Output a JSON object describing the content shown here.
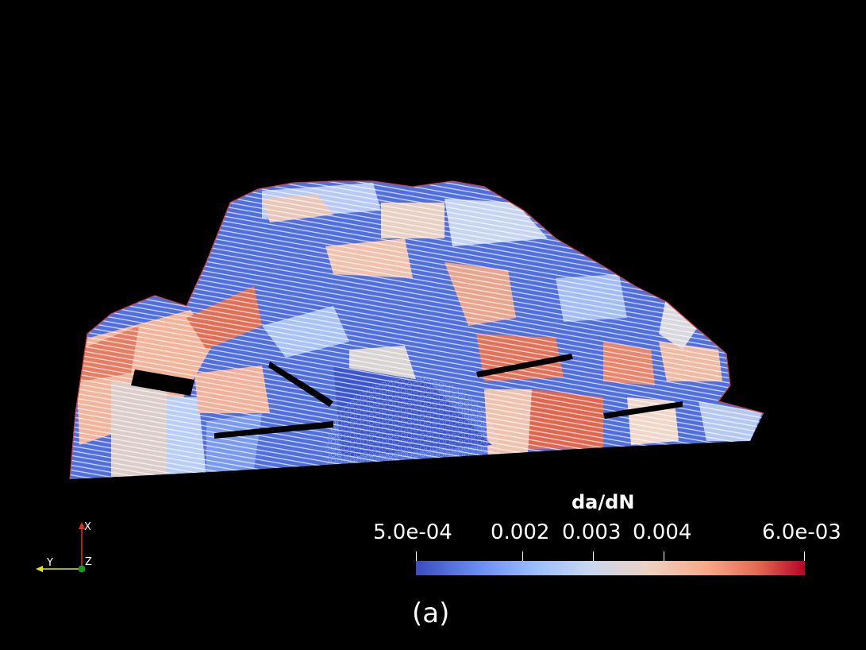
{
  "colorbar": {
    "title": "da/dN",
    "labels": [
      "5.0e-04",
      "0.002",
      "0.003",
      "0.004",
      "6.0e-03"
    ],
    "colors": [
      "#3b4cc0",
      "#9abbff",
      "#dddcdc",
      "#f7a889",
      "#b40426"
    ]
  },
  "orientation_axes": {
    "x": "X",
    "y": "Y",
    "z": "Z"
  },
  "caption": "(a)"
}
